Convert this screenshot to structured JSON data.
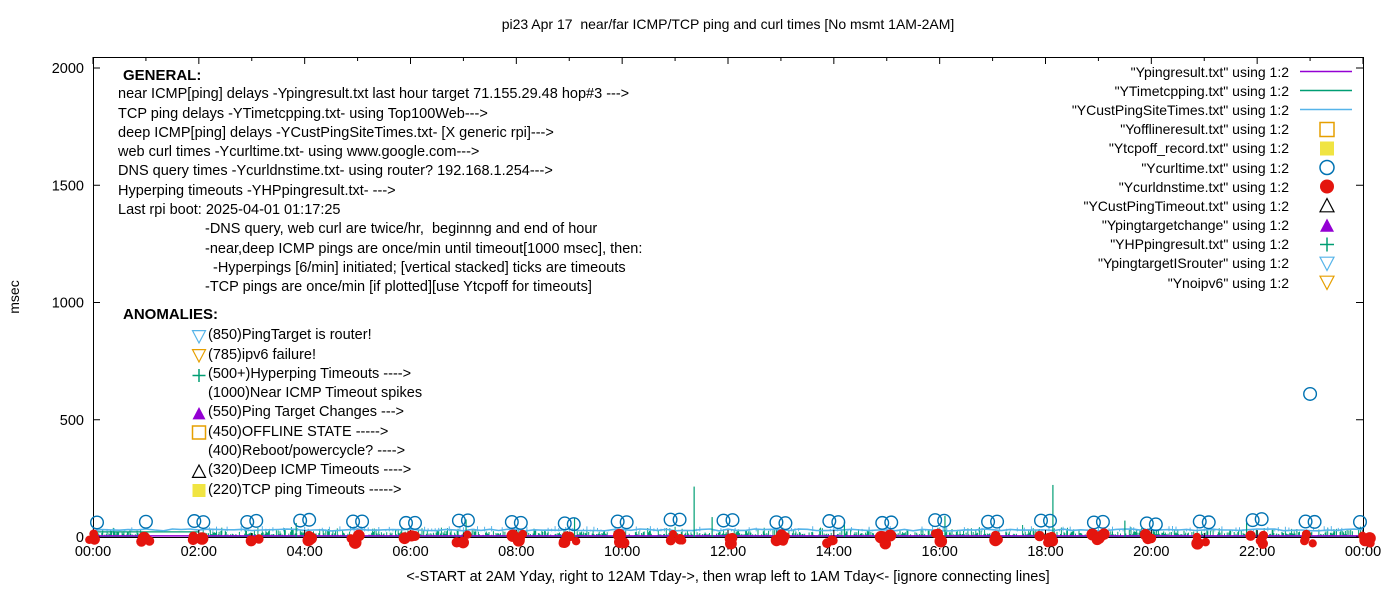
{
  "chart_data": {
    "type": "scatter",
    "title": "pi23 Apr 17  near/far ICMP/TCP ping and curl times [No msmt 1AM-2AM]",
    "ylabel": "msec",
    "xlabel": "<-START at 2AM Yday, right to 12AM Tday->, then wrap left to 1AM Tday<- [ignore connecting lines]",
    "x_ticks": [
      "00:00",
      "02:00",
      "04:00",
      "06:00",
      "08:00",
      "10:00",
      "12:00",
      "14:00",
      "16:00",
      "18:00",
      "20:00",
      "22:00",
      "00:00"
    ],
    "x_tick_hours": [
      0,
      2,
      4,
      6,
      8,
      10,
      12,
      14,
      16,
      18,
      20,
      22,
      24
    ],
    "y_ticks": [
      0,
      500,
      1000,
      1500,
      2000
    ],
    "ylim": [
      0,
      2045
    ],
    "x_hours_range": [
      0,
      24
    ],
    "grid": false,
    "legend_position": "top-right",
    "legend": [
      {
        "label": "\"Ypingresult.txt\" using 1:2",
        "marker": "line",
        "color": "#9400d3"
      },
      {
        "label": "\"YTimetcpping.txt\" using 1:2",
        "marker": "line",
        "color": "#009e73"
      },
      {
        "label": "\"YCustPingSiteTimes.txt\" using 1:2",
        "marker": "line",
        "color": "#56b4e9"
      },
      {
        "label": "\"Yofflineresult.txt\" using 1:2",
        "marker": "square-open",
        "color": "#e69f00"
      },
      {
        "label": "\"Ytcpoff_record.txt\" using 1:2",
        "marker": "square-fill",
        "color": "#f0e442"
      },
      {
        "label": "\"Ycurltime.txt\" using 1:2",
        "marker": "circle-open",
        "color": "#0072b2"
      },
      {
        "label": "\"Ycurldnstime.txt\" using 1:2",
        "marker": "circle-fill",
        "color": "#e4150e"
      },
      {
        "label": "\"YCustPingTimeout.txt\" using 1:2",
        "marker": "triangle-open",
        "color": "#000000"
      },
      {
        "label": "\"Ypingtargetchange\" using 1:2",
        "marker": "triangle-fill",
        "color": "#9400d3"
      },
      {
        "label": "\"YHPpingresult.txt\" using 1:2",
        "marker": "plus",
        "color": "#009e73"
      },
      {
        "label": "\"YpingtargetISrouter\" using 1:2",
        "marker": "triangle-down-open",
        "color": "#56b4e9"
      },
      {
        "label": "\"Ynoipv6\" using 1:2",
        "marker": "triangle-down-open",
        "color": "#e69f00"
      }
    ],
    "series": {
      "near_icmp_line": {
        "name": "Ypingresult",
        "color": "#9400d3",
        "constant_msec": 5
      },
      "custping_line": {
        "name": "YCustPingSiteTimes",
        "color": "#56b4e9",
        "constant_msec": 30
      },
      "tcp_ping_noise": {
        "name": "YTimetcpping",
        "color": "#009e73",
        "range_msec": [
          0,
          46
        ],
        "no_msmt_gap_hours": [
          0.9,
          2.0
        ],
        "gap_flat_msec": 22,
        "tall_spikes": [
          {
            "hour": 11.36,
            "msec": 215
          },
          {
            "hour": 18.14,
            "msec": 222
          }
        ],
        "medium_spikes": [
          {
            "hour": 3.84,
            "msec": 60
          },
          {
            "hour": 7.05,
            "msec": 75
          },
          {
            "hour": 9.1,
            "msec": 80
          },
          {
            "hour": 11.7,
            "msec": 85
          },
          {
            "hour": 14.2,
            "msec": 65
          },
          {
            "hour": 16.1,
            "msec": 90
          },
          {
            "hour": 19.5,
            "msec": 70
          },
          {
            "hour": 21.8,
            "msec": 65
          }
        ]
      },
      "web_curl_points": {
        "name": "Ycurltime",
        "color": "#0072b2",
        "hourly_msec": [
          62,
          65,
          68,
          64,
          70,
          66,
          60,
          70,
          64,
          58,
          66,
          74,
          70,
          63,
          68,
          60,
          72,
          65,
          70,
          62,
          58,
          66,
          72,
          66,
          64
        ],
        "outlier": {
          "hour": 23,
          "msec": 610
        }
      },
      "dns_query_points": {
        "name": "Ycurldnstime",
        "color": "#e4150e",
        "hourly_msec": [
          6,
          4,
          5,
          7,
          5,
          6,
          4,
          5,
          6,
          5,
          7,
          5,
          4,
          6,
          5,
          5,
          6,
          4,
          7,
          5,
          6,
          5,
          4,
          6,
          5
        ]
      }
    },
    "noise": {
      "seed": 7,
      "tick_minutes": 1
    }
  },
  "annotations": {
    "general": {
      "heading": "GENERAL:",
      "lines": [
        {
          "text": "near ICMP[ping] delays -Ypingresult.txt last hour target 71.155.29.48 hop#3 --->",
          "indent": 0
        },
        {
          "text": "TCP ping delays -YTimetcpping.txt- using Top100Web--->",
          "indent": 0
        },
        {
          "text": "deep ICMP[ping] delays -YCustPingSiteTimes.txt- [X generic rpi]--->",
          "indent": 0
        },
        {
          "text": "web curl times -Ycurltime.txt- using www.google.com--->",
          "indent": 0
        },
        {
          "text": "DNS query times -Ycurldnstime.txt- using router? 192.168.1.254--->",
          "indent": 0
        },
        {
          "text": "Hyperping timeouts -YHPpingresult.txt- --->",
          "indent": 0
        },
        {
          "text": "Last rpi boot: 2025-04-01 01:17:25",
          "indent": 0
        },
        {
          "text": "-DNS query, web curl are twice/hr,  beginnng and end of hour",
          "indent": 87
        },
        {
          "text": "-near,deep ICMP pings are once/min until timeout[1000 msec], then:",
          "indent": 87
        },
        {
          "text": "-Hyperpings [6/min] initiated; [vertical stacked] ticks are timeouts",
          "indent": 95
        },
        {
          "text": "-TCP pings are once/min [if plotted][use Ytcpoff for timeouts]",
          "indent": 87
        }
      ]
    },
    "anomalies": {
      "heading": "ANOMALIES:",
      "items": [
        {
          "marker": "triangle-down-open",
          "color": "#56b4e9",
          "text": "(850)PingTarget is router!"
        },
        {
          "marker": "triangle-down-open",
          "color": "#e69f00",
          "text": "(785)ipv6 failure!"
        },
        {
          "marker": "plus",
          "color": "#009e73",
          "text": "(500+)Hyperping Timeouts ---->"
        },
        {
          "marker": "none",
          "color": "",
          "text": "(1000)Near ICMP Timeout spikes"
        },
        {
          "marker": "triangle-fill",
          "color": "#9400d3",
          "text": "(550)Ping Target Changes --->"
        },
        {
          "marker": "square-open",
          "color": "#e69f00",
          "text": "(450)OFFLINE STATE ----->"
        },
        {
          "marker": "none",
          "color": "",
          "text": "(400)Reboot/powercycle? ---->"
        },
        {
          "marker": "triangle-open",
          "color": "#000000",
          "text": "(320)Deep ICMP Timeouts ---->"
        },
        {
          "marker": "square-fill",
          "color": "#f0e442",
          "text": "(220)TCP ping Timeouts ----->"
        }
      ]
    }
  }
}
